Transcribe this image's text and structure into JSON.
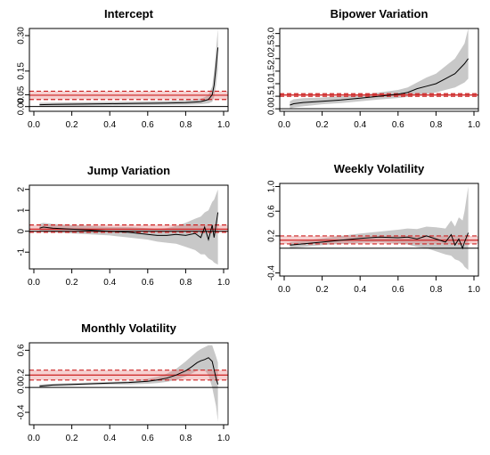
{
  "chart_data": [
    {
      "type": "line",
      "title": "Intercept",
      "xlim": [
        0,
        1
      ],
      "ylim": [
        -0.02,
        0.33
      ],
      "xticks": [
        "0.0",
        "0.2",
        "0.4",
        "0.6",
        "0.8",
        "1.0"
      ],
      "yticks": [
        "0.00",
        "0.05",
        "0.15",
        "0.30"
      ],
      "ytick_values": [
        0,
        0.05,
        0.15,
        0.3
      ],
      "zero_line": true,
      "ref_line": 0.048,
      "ref_band": [
        0.03,
        0.065
      ],
      "series": [
        {
          "x": [
            0.03,
            0.1,
            0.2,
            0.3,
            0.4,
            0.5,
            0.6,
            0.7,
            0.8,
            0.85,
            0.88,
            0.9,
            0.92,
            0.94,
            0.95,
            0.96,
            0.97
          ],
          "y": [
            0.008,
            0.009,
            0.01,
            0.011,
            0.012,
            0.013,
            0.014,
            0.015,
            0.017,
            0.019,
            0.021,
            0.025,
            0.03,
            0.05,
            0.09,
            0.17,
            0.25
          ],
          "lower": [
            0.0,
            0.001,
            0.002,
            0.003,
            0.004,
            0.005,
            0.006,
            0.007,
            0.008,
            0.009,
            0.01,
            0.012,
            0.014,
            0.02,
            0.04,
            0.09,
            0.16
          ],
          "upper": [
            0.016,
            0.017,
            0.018,
            0.019,
            0.02,
            0.021,
            0.022,
            0.024,
            0.027,
            0.03,
            0.034,
            0.04,
            0.05,
            0.085,
            0.15,
            0.24,
            0.33
          ]
        }
      ]
    },
    {
      "type": "line",
      "title": "Bipower Variation",
      "xlim": [
        0,
        1
      ],
      "ylim": [
        -0.1,
        3.2
      ],
      "xticks": [
        "0.0",
        "0.2",
        "0.4",
        "0.6",
        "0.8",
        "1.0"
      ],
      "yticks": [
        "0.0",
        "0.5",
        "1.0",
        "1.5",
        "2.0",
        "2.5",
        "3.0"
      ],
      "ytick_values": [
        0,
        0.5,
        1.0,
        1.5,
        2.0,
        2.5,
        3.0
      ],
      "zero_line": true,
      "ref_line": 0.55,
      "ref_band": [
        0.5,
        0.6
      ],
      "series": [
        {
          "x": [
            0.03,
            0.05,
            0.1,
            0.2,
            0.3,
            0.4,
            0.5,
            0.6,
            0.65,
            0.7,
            0.75,
            0.8,
            0.85,
            0.9,
            0.95,
            0.97
          ],
          "y": [
            0.15,
            0.2,
            0.25,
            0.3,
            0.35,
            0.42,
            0.5,
            0.58,
            0.65,
            0.8,
            0.9,
            1.0,
            1.2,
            1.4,
            1.8,
            2.0
          ],
          "lower": [
            0.0,
            0.05,
            0.1,
            0.18,
            0.23,
            0.3,
            0.37,
            0.43,
            0.48,
            0.55,
            0.6,
            0.65,
            0.75,
            0.85,
            1.05,
            1.2
          ],
          "upper": [
            0.3,
            0.38,
            0.42,
            0.45,
            0.5,
            0.55,
            0.65,
            0.75,
            0.85,
            1.05,
            1.25,
            1.4,
            1.7,
            2.0,
            2.6,
            3.2
          ]
        }
      ]
    },
    {
      "type": "line",
      "title": "Jump Variation",
      "xlim": [
        0,
        1
      ],
      "ylim": [
        -1.8,
        2.2
      ],
      "xticks": [
        "0.0",
        "0.2",
        "0.4",
        "0.6",
        "0.8",
        "1.0"
      ],
      "yticks": [
        "-1",
        "0",
        "1",
        "2"
      ],
      "ytick_values": [
        -1,
        0,
        1,
        2
      ],
      "zero_line": true,
      "ref_line": 0.1,
      "ref_band": [
        -0.05,
        0.3
      ],
      "series": [
        {
          "x": [
            0.03,
            0.05,
            0.1,
            0.2,
            0.3,
            0.4,
            0.5,
            0.6,
            0.65,
            0.7,
            0.75,
            0.8,
            0.85,
            0.88,
            0.9,
            0.92,
            0.94,
            0.95,
            0.97
          ],
          "y": [
            0.15,
            0.2,
            0.15,
            0.1,
            0.05,
            0.0,
            -0.05,
            -0.15,
            -0.2,
            -0.2,
            -0.15,
            -0.2,
            -0.1,
            -0.3,
            0.2,
            -0.4,
            0.3,
            -0.3,
            0.9
          ],
          "lower": [
            -0.05,
            0.0,
            -0.05,
            -0.1,
            -0.15,
            -0.2,
            -0.3,
            -0.4,
            -0.5,
            -0.55,
            -0.6,
            -0.75,
            -0.9,
            -1.1,
            -1.1,
            -1.3,
            -1.4,
            -1.5,
            -1.6
          ],
          "upper": [
            0.35,
            0.4,
            0.35,
            0.3,
            0.25,
            0.2,
            0.2,
            0.15,
            0.1,
            0.15,
            0.25,
            0.4,
            0.6,
            0.7,
            0.9,
            1.0,
            1.4,
            1.5,
            2.0
          ]
        }
      ]
    },
    {
      "type": "line",
      "title": "Weekly Volatility",
      "xlim": [
        0,
        1
      ],
      "ylim": [
        -0.45,
        1.05
      ],
      "xticks": [
        "0.0",
        "0.2",
        "0.4",
        "0.6",
        "0.8",
        "1.0"
      ],
      "yticks": [
        "-0.4",
        "0.2",
        "0.6",
        "1.0"
      ],
      "ytick_values": [
        -0.4,
        0.2,
        0.6,
        1.0
      ],
      "zero_line": true,
      "ref_line": 0.13,
      "ref_band": [
        0.07,
        0.2
      ],
      "series": [
        {
          "x": [
            0.03,
            0.1,
            0.2,
            0.3,
            0.4,
            0.5,
            0.6,
            0.65,
            0.7,
            0.75,
            0.8,
            0.85,
            0.88,
            0.9,
            0.92,
            0.94,
            0.95,
            0.97
          ],
          "y": [
            0.05,
            0.07,
            0.1,
            0.13,
            0.16,
            0.18,
            0.17,
            0.18,
            0.15,
            0.2,
            0.15,
            0.1,
            0.22,
            0.05,
            0.15,
            0.0,
            0.1,
            0.25
          ],
          "lower": [
            0.0,
            0.02,
            0.05,
            0.07,
            0.09,
            0.1,
            0.08,
            0.06,
            0.02,
            0.0,
            -0.05,
            -0.1,
            -0.12,
            -0.18,
            -0.2,
            -0.25,
            -0.3,
            -0.35
          ],
          "upper": [
            0.1,
            0.12,
            0.16,
            0.2,
            0.24,
            0.27,
            0.3,
            0.32,
            0.31,
            0.35,
            0.34,
            0.32,
            0.45,
            0.35,
            0.5,
            0.45,
            0.6,
            1.0
          ]
        }
      ]
    },
    {
      "type": "line",
      "title": "Monthly Volatility",
      "xlim": [
        0,
        1
      ],
      "ylim": [
        -0.6,
        0.72
      ],
      "xticks": [
        "0.0",
        "0.2",
        "0.4",
        "0.6",
        "0.8",
        "1.0"
      ],
      "yticks": [
        "-0.4",
        "0.0",
        "0.2",
        "0.6"
      ],
      "ytick_values": [
        -0.4,
        0.0,
        0.2,
        0.6
      ],
      "zero_line": true,
      "ref_line": 0.2,
      "ref_band": [
        0.12,
        0.28
      ],
      "series": [
        {
          "x": [
            0.03,
            0.1,
            0.2,
            0.3,
            0.4,
            0.5,
            0.6,
            0.65,
            0.7,
            0.75,
            0.8,
            0.83,
            0.86,
            0.88,
            0.9,
            0.92,
            0.94,
            0.96,
            0.97
          ],
          "y": [
            0.02,
            0.04,
            0.05,
            0.06,
            0.07,
            0.08,
            0.1,
            0.12,
            0.15,
            0.2,
            0.27,
            0.33,
            0.4,
            0.43,
            0.45,
            0.48,
            0.42,
            0.15,
            0.05
          ],
          "lower": [
            0.0,
            0.02,
            0.03,
            0.04,
            0.05,
            0.05,
            0.06,
            0.07,
            0.09,
            0.12,
            0.18,
            0.22,
            0.27,
            0.28,
            0.28,
            0.2,
            0.0,
            -0.3,
            -0.55
          ],
          "upper": [
            0.05,
            0.06,
            0.07,
            0.08,
            0.09,
            0.1,
            0.14,
            0.17,
            0.22,
            0.3,
            0.42,
            0.5,
            0.58,
            0.62,
            0.65,
            0.68,
            0.68,
            0.5,
            0.4
          ]
        }
      ]
    }
  ]
}
